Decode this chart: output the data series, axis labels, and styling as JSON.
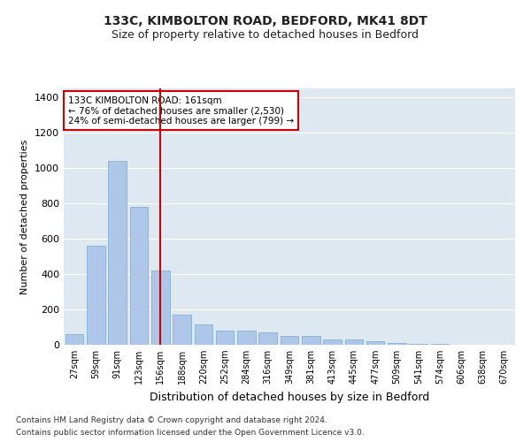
{
  "title1": "133C, KIMBOLTON ROAD, BEDFORD, MK41 8DT",
  "title2": "Size of property relative to detached houses in Bedford",
  "xlabel": "Distribution of detached houses by size in Bedford",
  "ylabel": "Number of detached properties",
  "categories": [
    "27sqm",
    "59sqm",
    "91sqm",
    "123sqm",
    "156sqm",
    "188sqm",
    "220sqm",
    "252sqm",
    "284sqm",
    "316sqm",
    "349sqm",
    "381sqm",
    "413sqm",
    "445sqm",
    "477sqm",
    "509sqm",
    "541sqm",
    "574sqm",
    "606sqm",
    "638sqm",
    "670sqm"
  ],
  "values": [
    58,
    562,
    1042,
    782,
    420,
    168,
    115,
    78,
    78,
    72,
    52,
    52,
    28,
    28,
    18,
    8,
    4,
    4,
    0,
    0,
    0
  ],
  "bar_color": "#aec6e8",
  "bar_edge_color": "#7aa8cc",
  "background_color": "#dde8f0",
  "grid_color": "#ffffff",
  "red_line_x": 4.5,
  "annotation_text": "133C KIMBOLTON ROAD: 161sqm\n← 76% of detached houses are smaller (2,530)\n24% of semi-detached houses are larger (799) →",
  "annotation_box_color": "#ffffff",
  "annotation_box_edge_color": "#cc0000",
  "footer1": "Contains HM Land Registry data © Crown copyright and database right 2024.",
  "footer2": "Contains public sector information licensed under the Open Government Licence v3.0.",
  "ylim": [
    0,
    1450
  ],
  "yticks": [
    0,
    200,
    400,
    600,
    800,
    1000,
    1200,
    1400
  ],
  "fig_bg": "#ffffff",
  "title1_fontsize": 10,
  "title2_fontsize": 9
}
